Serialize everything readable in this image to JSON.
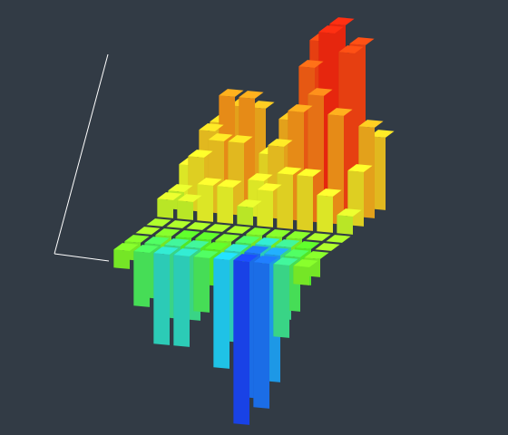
{
  "chart_data": {
    "type": "bar3d",
    "values": [
      [
        -0.1,
        -0.3,
        -0.5,
        -0.5,
        -0.3,
        -0.6,
        -0.9,
        -0.8,
        -0.4,
        -0.1
      ],
      [
        -0.1,
        -0.3,
        -0.4,
        -0.4,
        -0.2,
        -0.5,
        -0.8,
        -0.7,
        -0.3,
        -0.1
      ],
      [
        0,
        -0.1,
        -0.2,
        -0.2,
        -0.1,
        -0.3,
        -0.5,
        -0.4,
        -0.2,
        0
      ],
      [
        0,
        0,
        0,
        0,
        0,
        -0.1,
        -0.1,
        -0.1,
        0,
        0
      ],
      [
        0.1,
        0.1,
        0.2,
        0.2,
        0.1,
        0.2,
        0.3,
        0.3,
        0.2,
        0.1
      ],
      [
        0.1,
        0.3,
        0.4,
        0.4,
        0.2,
        0.4,
        0.6,
        0.7,
        0.6,
        0.3
      ],
      [
        0.2,
        0.4,
        0.6,
        0.6,
        0.3,
        0.5,
        0.8,
        1,
        0.9,
        0.5
      ],
      [
        0.1,
        0.4,
        0.5,
        0.5,
        0.2,
        0.5,
        0.9,
        1,
        0.9,
        0.4
      ]
    ],
    "zlim": [
      -1,
      1
    ],
    "colors": [
      "#1a1aff",
      "#22d8ff",
      "#5cff2a",
      "#f4ff2a",
      "#ff9a1a",
      "#ff2a10"
    ]
  }
}
